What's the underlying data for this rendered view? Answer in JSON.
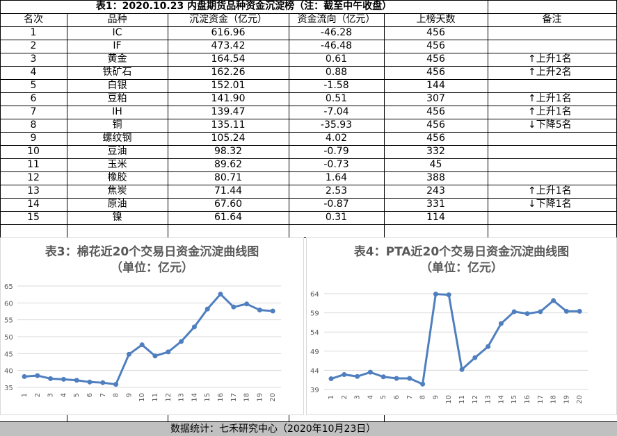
{
  "table": {
    "title": "表1：2020.10.23 内盘期货品种资金沉淀榜（注：截至中午收盘）",
    "columns": [
      "名次",
      "品种",
      "沉淀资金（亿元）",
      "资金流向（亿元）",
      "上榜天数",
      "备注"
    ],
    "rows": [
      [
        "1",
        "IC",
        "616.96",
        "-46.28",
        "456"
      ],
      [
        "2",
        "IF",
        "473.42",
        "-46.48",
        "456"
      ],
      [
        "3",
        "黄金",
        "164.54",
        "0.61",
        "456",
        "↑上升1名"
      ],
      [
        "4",
        "铁矿石",
        "162.26",
        "0.88",
        "456",
        "↑上升2名"
      ],
      [
        "5",
        "白银",
        "152.01",
        "-1.58",
        "144"
      ],
      [
        "6",
        "豆粕",
        "141.90",
        "0.51",
        "307",
        "↑上升1名"
      ],
      [
        "7",
        "IH",
        "139.47",
        "-7.04",
        "456",
        "↑上升1名"
      ],
      [
        "8",
        "铜",
        "135.11",
        "-35.93",
        "456",
        "↓下降5名"
      ],
      [
        "9",
        "螺纹钢",
        "105.24",
        "4.02",
        "456"
      ],
      [
        "10",
        "豆油",
        "98.32",
        "-0.79",
        "332"
      ],
      [
        "11",
        "玉米",
        "89.62",
        "-0.73",
        "45"
      ],
      [
        "12",
        "橡胶",
        "80.71",
        "1.64",
        "388"
      ],
      [
        "13",
        "焦炭",
        "71.44",
        "2.53",
        "243",
        "↑上升1名"
      ],
      [
        "14",
        "原油",
        "67.60",
        "-0.87",
        "331",
        "↓下降1名"
      ],
      [
        "15",
        "镍",
        "61.64",
        "0.31",
        "114"
      ]
    ]
  },
  "chart_data": [
    {
      "type": "line",
      "title": "表3：棉花近20个交易日资金沉淀曲线图",
      "subtitle": "（单位：亿元）",
      "categories": [
        "1",
        "2",
        "3",
        "4",
        "5",
        "6",
        "7",
        "8",
        "9",
        "10",
        "11",
        "12",
        "13",
        "14",
        "15",
        "16",
        "17",
        "18",
        "19",
        "20"
      ],
      "series": [
        {
          "color": "#4f7fbf",
          "values": [
            38.2,
            38.5,
            37.6,
            37.4,
            37.1,
            36.6,
            36.4,
            35.9,
            44.8,
            47.6,
            44.3,
            45.5,
            48.6,
            52.9,
            58.2,
            62.6,
            58.8,
            59.7,
            57.9,
            57.6
          ]
        }
      ],
      "ylim": [
        35,
        65
      ],
      "yticks": [
        35,
        40,
        45,
        50,
        55,
        60,
        65
      ],
      "grid": true
    },
    {
      "type": "line",
      "title": "表4：PTA近20个交易日资金沉淀曲线图",
      "subtitle": "（单位：亿元）",
      "categories": [
        "1",
        "2",
        "3",
        "4",
        "5",
        "6",
        "7",
        "8",
        "9",
        "10",
        "11",
        "12",
        "13",
        "14",
        "15",
        "16",
        "17",
        "18",
        "19",
        "20"
      ],
      "series": [
        {
          "color": "#4f7fbf",
          "values": [
            41.8,
            42.9,
            42.4,
            43.5,
            42.3,
            41.9,
            41.9,
            40.4,
            63.9,
            63.7,
            44.2,
            47.3,
            50.2,
            56.2,
            59.3,
            58.8,
            59.3,
            62.2,
            59.4,
            59.4
          ]
        }
      ],
      "ylim": [
        39,
        64
      ],
      "yticks": [
        39,
        44,
        49,
        54,
        59,
        64
      ],
      "grid": true
    }
  ],
  "footer": "数据统计：七禾研究中心（2020年10月23日）"
}
